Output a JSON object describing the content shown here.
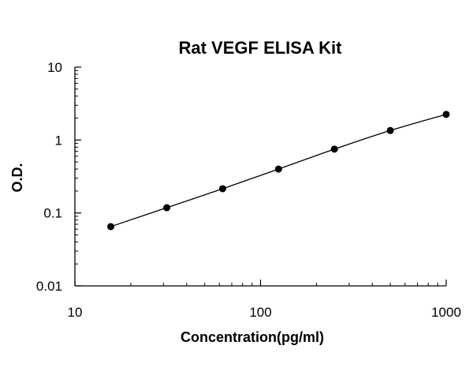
{
  "chart_data": {
    "type": "scatter",
    "title": "Rat VEGF ELISA Kit",
    "xlabel": "Concentration(pg/ml)",
    "ylabel": "O.D.",
    "x_scale": "log",
    "y_scale": "log",
    "xlim": [
      10,
      1000
    ],
    "ylim": [
      0.01,
      10
    ],
    "x_ticks": [
      "10",
      "100",
      "1000"
    ],
    "y_ticks": [
      "10",
      "1",
      "0.1",
      "0.01"
    ],
    "grid": false,
    "legend": "none",
    "series": [
      {
        "x": [
          15.6,
          31.25,
          62.5,
          125,
          250,
          500,
          1000
        ],
        "y": [
          0.065,
          0.118,
          0.215,
          0.4,
          0.75,
          1.35,
          2.25
        ],
        "marker": "circle",
        "trendline": true,
        "color": "#000000"
      }
    ]
  }
}
